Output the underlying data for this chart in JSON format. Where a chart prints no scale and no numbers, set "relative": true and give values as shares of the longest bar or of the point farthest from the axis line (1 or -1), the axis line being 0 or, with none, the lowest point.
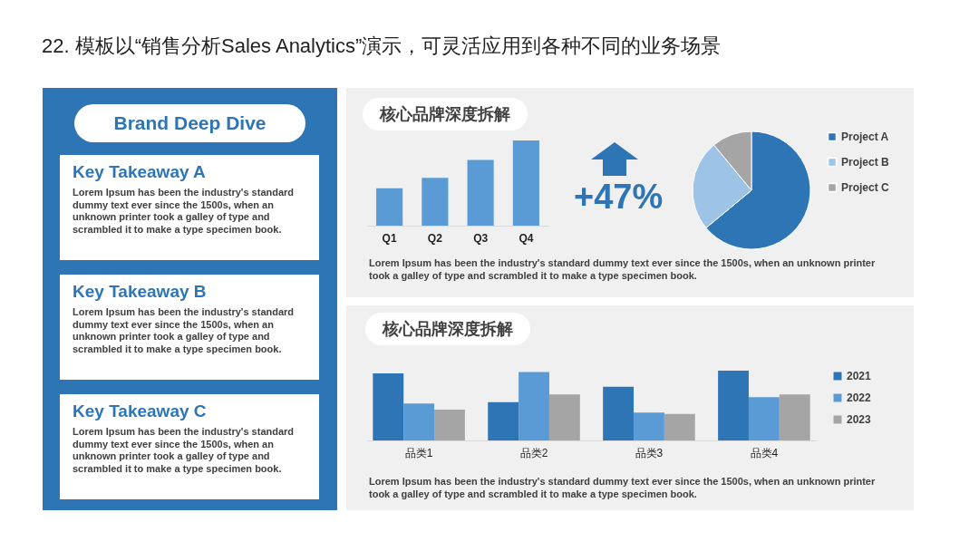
{
  "chart_data": [
    {
      "type": "other",
      "title": "22. 模板以“销售分析Sales Analytics”演示，可灵活应用到各种不同的业务场景",
      "subtitle": "Brand Deep Dive",
      "annotations": [
        "Key Takeaway A",
        "Lorem Ipsum has been the industry's standard dummy text ever since the 1500s, when an unknown printer took a galley of type and scrambled it to make a type specimen book.",
        "Key Takeaway B",
        "Lorem Ipsum has been the industry's standard dummy text ever since the 1500s, when an unknown printer took a galley of type and scrambled it to make a type specimen book.",
        "Key Takeaway C",
        "Lorem Ipsum has been the industry's standard dummy text ever since the 1500s, when an unknown printer took a galley of type and scrambled it to make a type specimen book."
      ]
    },
    {
      "type": "bar",
      "title": "核心品牌深度拆解",
      "categories": [
        "Q1",
        "Q2",
        "Q3",
        "Q4"
      ],
      "values": [
        0.44,
        0.56,
        0.77,
        1
      ],
      "color": "#5b9bd5",
      "relative": true,
      "annotations": [
        "+47%",
        "Lorem Ipsum has been the industry's standard dummy text ever since the 1500s, when an unknown printer took a galley of type and scrambled it to make a type specimen book."
      ]
    },
    {
      "type": "pie",
      "categories": [
        "Project A",
        "Project B",
        "Project C"
      ],
      "values": [
        64,
        25,
        11
      ],
      "colors": [
        "#2e75b6",
        "#9dc3e6",
        "#a5a5a5"
      ],
      "legend": "right"
    },
    {
      "type": "bar",
      "title": "核心品牌深度拆解",
      "categories": [
        "品类1",
        "品类2",
        "品类3",
        "品类4"
      ],
      "relative": true,
      "legend": "right",
      "series": [
        {
          "name": "2021",
          "color": "#2e75b6",
          "values": [
            0.96,
            0.55,
            0.77,
            1
          ]
        },
        {
          "name": "2022",
          "color": "#5b9bd5",
          "values": [
            0.53,
            0.98,
            0.4,
            0.62
          ]
        },
        {
          "name": "2023",
          "color": "#a5a5a5",
          "values": [
            0.44,
            0.66,
            0.38,
            0.66
          ]
        }
      ],
      "annotations": [
        "Lorem Ipsum has been the industry's standard dummy text ever since the 1500s, when an unknown printer took a galley of type and scrambled it to make a type specimen book."
      ]
    }
  ]
}
